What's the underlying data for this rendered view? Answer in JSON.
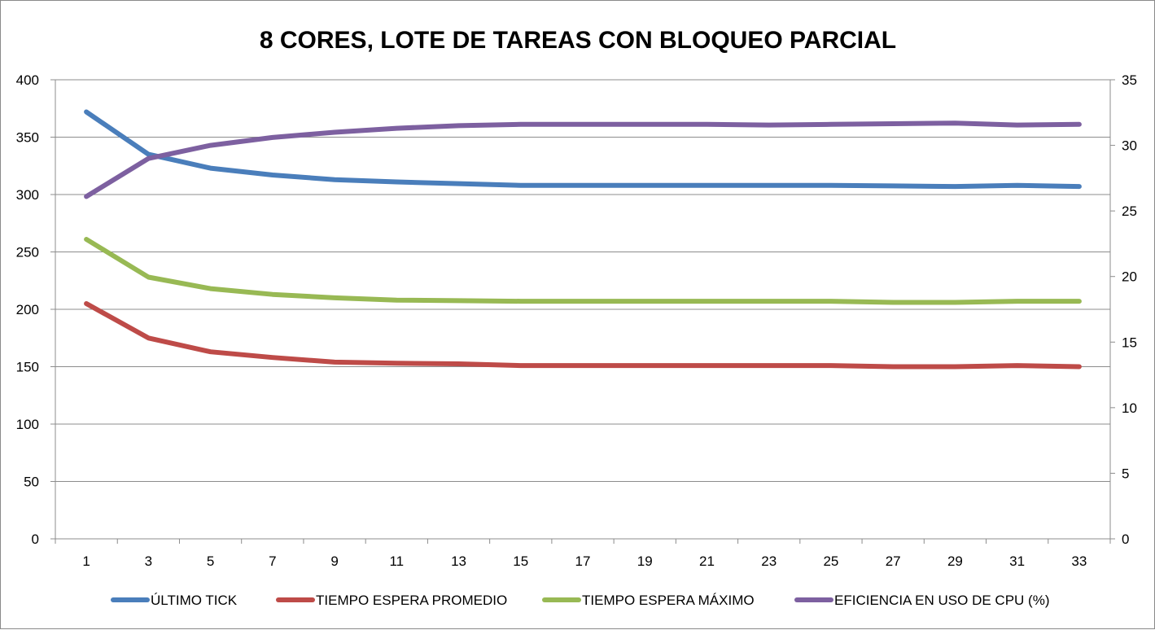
{
  "chart_data": {
    "type": "line",
    "title": "8 CORES, LOTE DE TAREAS CON BLOQUEO PARCIAL",
    "xlabel": "",
    "ylabel": "",
    "x": [
      1,
      3,
      5,
      7,
      9,
      11,
      13,
      15,
      17,
      19,
      21,
      23,
      25,
      27,
      29,
      31,
      33
    ],
    "ylim": [
      0,
      400
    ],
    "y_ticks": [
      0,
      50,
      100,
      150,
      200,
      250,
      300,
      350,
      400
    ],
    "y2lim": [
      0,
      35
    ],
    "y2_ticks": [
      0,
      5,
      10,
      15,
      20,
      25,
      30,
      35
    ],
    "grid": true,
    "legend_position": "bottom",
    "series": [
      {
        "name": "ÚLTIMO TICK",
        "axis": "left",
        "color": "#4a7ebb",
        "values": [
          372,
          335,
          323,
          317,
          313,
          311,
          309.5,
          308,
          308,
          308,
          308,
          308,
          308,
          307.5,
          307,
          308,
          307
        ]
      },
      {
        "name": "TIEMPO ESPERA PROMEDIO",
        "axis": "left",
        "color": "#be4b48",
        "values": [
          205,
          175,
          163,
          158,
          154,
          153,
          152.5,
          151,
          151,
          151,
          151,
          151,
          151,
          150,
          150,
          151,
          150
        ]
      },
      {
        "name": "TIEMPO ESPERA MÁXIMO",
        "axis": "left",
        "color": "#98b954",
        "values": [
          261,
          228,
          218,
          213,
          210,
          208,
          207.5,
          207,
          207,
          207,
          207,
          207,
          207,
          206,
          206,
          207,
          207
        ]
      },
      {
        "name": "EFICIENCIA EN USO DE CPU (%)",
        "axis": "right",
        "color": "#7d60a0",
        "values": [
          26.1,
          29.0,
          30.0,
          30.6,
          31.0,
          31.3,
          31.5,
          31.6,
          31.6,
          31.6,
          31.6,
          31.55,
          31.6,
          31.65,
          31.7,
          31.55,
          31.6
        ]
      }
    ]
  }
}
